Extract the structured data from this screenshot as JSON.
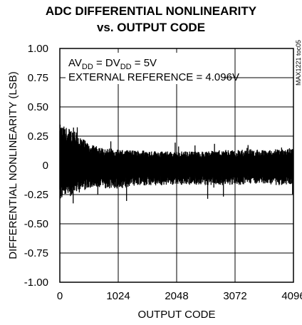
{
  "chart_data": {
    "type": "line",
    "title": "ADC DIFFERENTIAL NONLINEARITY",
    "subtitle": "vs. OUTPUT CODE",
    "xlabel": "OUTPUT CODE",
    "ylabel": "DIFFERENTIAL NONLINEARITY (LSB)",
    "xlim": [
      0,
      4096
    ],
    "ylim": [
      -1.0,
      1.0
    ],
    "x_ticks": [
      0,
      1024,
      2048,
      3072,
      4096
    ],
    "y_ticks": [
      1.0,
      0.75,
      0.5,
      0.25,
      0,
      -0.25,
      -0.5,
      -0.75,
      -1.0
    ],
    "x_tick_labels": [
      "0",
      "1024",
      "2048",
      "3072",
      "4096"
    ],
    "y_tick_labels": [
      "1.00",
      "0.75",
      "0.50",
      "0.25",
      "0",
      "-0.25",
      "-0.50",
      "-0.75",
      "-1.00"
    ],
    "grid": true,
    "series": [
      {
        "x": [
          0,
          256,
          512,
          768,
          1024,
          1280,
          1536,
          1792,
          2048,
          2304,
          2560,
          2816,
          3072,
          3328,
          3584,
          3840,
          4096
        ],
        "upper": [
          0.35,
          0.3,
          0.18,
          0.15,
          0.14,
          0.13,
          0.13,
          0.12,
          0.12,
          0.12,
          0.12,
          0.13,
          0.13,
          0.14,
          0.13,
          0.14,
          0.15
        ],
        "lower": [
          -0.3,
          -0.25,
          -0.2,
          -0.2,
          -0.2,
          -0.18,
          -0.18,
          -0.17,
          -0.17,
          -0.17,
          -0.17,
          -0.17,
          -0.17,
          -0.16,
          -0.16,
          -0.17,
          -0.17
        ],
        "outlier_min": -0.34,
        "outlier_max": 0.37
      }
    ],
    "annotations": [
      {
        "type": "condition",
        "sup": [
          "DD",
          "DD"
        ],
        "text_parts": [
          "AV",
          "DD",
          " = DV",
          "DD",
          " = 5V"
        ]
      },
      {
        "type": "condition",
        "text": "EXTERNAL REFERENCE = 4.096V"
      }
    ],
    "part_id": "MAX1221 toc05"
  },
  "strings": {
    "av": "AV",
    "dd1": "DD",
    "eq_dv": " = DV",
    "dd2": "DD",
    "eq_5v": " = 5V",
    "ext_ref": "EXTERNAL REFERENCE = 4.096V"
  }
}
